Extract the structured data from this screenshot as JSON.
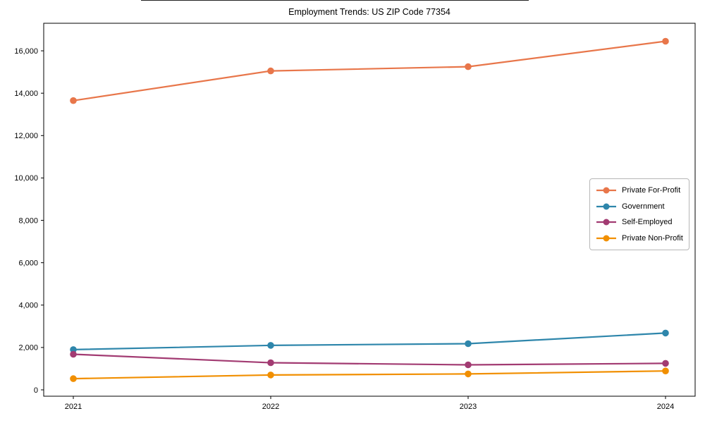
{
  "window": {
    "background": "#ffffff"
  },
  "chart_data": {
    "type": "line",
    "title": "Employment Trends: US ZIP Code 77354",
    "xlabel": "",
    "ylabel": "",
    "x": [
      2021,
      2022,
      2023,
      2024
    ],
    "x_tick_labels": [
      "2021",
      "2022",
      "2023",
      "2024"
    ],
    "y_ticks": [
      0,
      2000,
      4000,
      6000,
      8000,
      10000,
      12000,
      14000,
      16000
    ],
    "y_tick_labels": [
      "0",
      "2,000",
      "4,000",
      "6,000",
      "8,000",
      "10,000",
      "12,000",
      "14,000",
      "16,000"
    ],
    "xlim": [
      2020.85,
      2024.15
    ],
    "ylim": [
      -300,
      17300
    ],
    "grid": false,
    "legend_position": "center-right",
    "axis_color": "#000000",
    "series": [
      {
        "name": "Private For-Profit",
        "color": "#E8764A",
        "values": [
          13650,
          15050,
          15250,
          16450
        ]
      },
      {
        "name": "Government",
        "color": "#2E86AB",
        "values": [
          1900,
          2100,
          2180,
          2680
        ]
      },
      {
        "name": "Self-Employed",
        "color": "#A23B72",
        "values": [
          1680,
          1280,
          1180,
          1250
        ]
      },
      {
        "name": "Private Non-Profit",
        "color": "#F18F01",
        "values": [
          530,
          700,
          750,
          890
        ]
      }
    ]
  }
}
